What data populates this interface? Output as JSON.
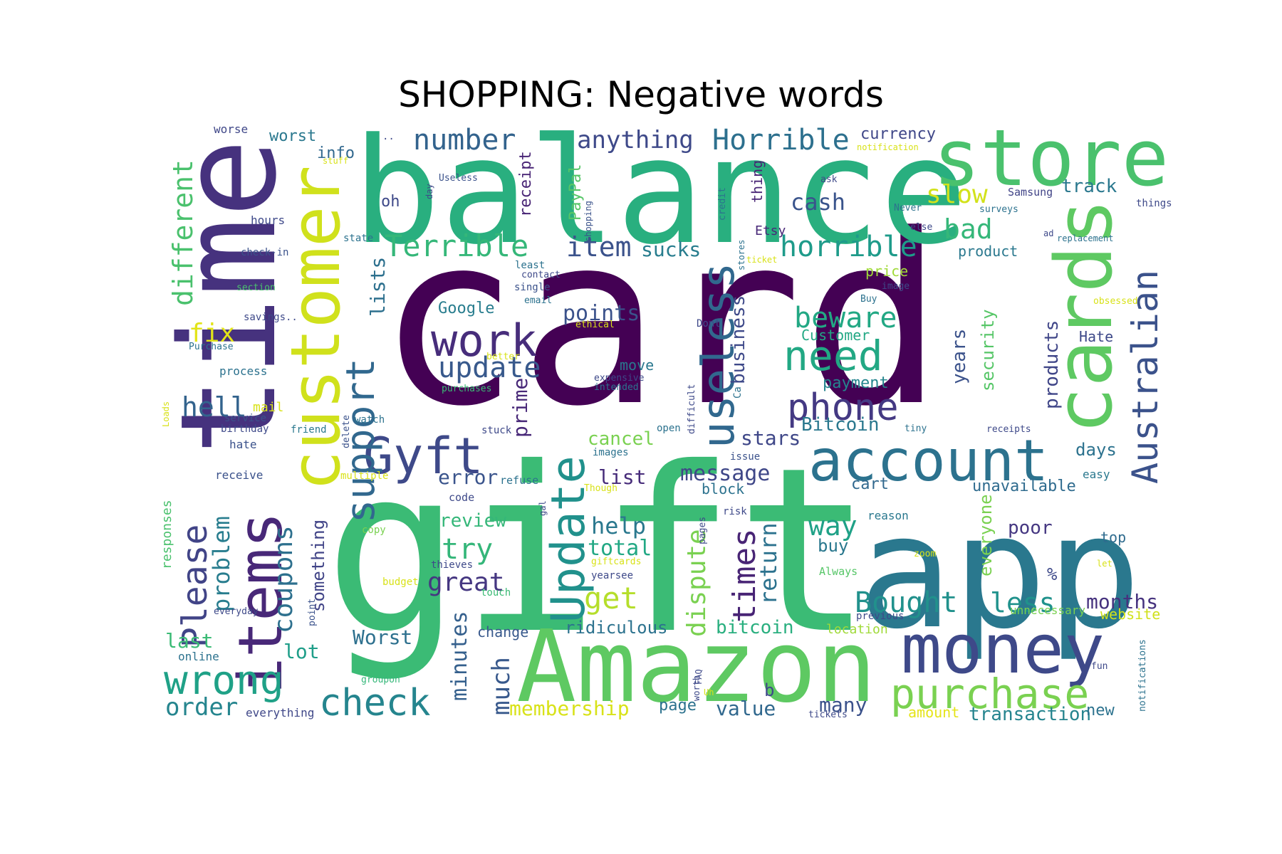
{
  "title": "SHOPPING: Negative words",
  "colormap": "viridis",
  "background": "#ffffff",
  "words": [
    {
      "text": "card",
      "weight": 1.0,
      "color": "#440154"
    },
    {
      "text": "gift",
      "weight": 0.95,
      "color": "#3bbb75"
    },
    {
      "text": "app",
      "weight": 0.7,
      "color": "#2a788e"
    },
    {
      "text": "balance",
      "weight": 0.72,
      "color": "#29af7f"
    },
    {
      "text": "time",
      "weight": 0.68,
      "color": "#46327e"
    },
    {
      "text": "Amazon",
      "weight": 0.55,
      "color": "#5ec962"
    },
    {
      "text": "store",
      "weight": 0.45,
      "color": "#4ac16d"
    },
    {
      "text": "customer",
      "weight": 0.42,
      "color": "#d0e11c"
    },
    {
      "text": "cards",
      "weight": 0.45,
      "color": "#5ec962"
    },
    {
      "text": "money",
      "weight": 0.4,
      "color": "#3e4989"
    },
    {
      "text": "items",
      "weight": 0.38,
      "color": "#482878"
    },
    {
      "text": "account",
      "weight": 0.36,
      "color": "#2c728e"
    },
    {
      "text": "Update",
      "weight": 0.32,
      "color": "#21918c"
    },
    {
      "text": "useless",
      "weight": 0.3,
      "color": "#31688e"
    },
    {
      "text": "purchase",
      "weight": 0.28,
      "color": "#7ad151"
    },
    {
      "text": "Gyft",
      "weight": 0.3,
      "color": "#3e4989"
    },
    {
      "text": "support",
      "weight": 0.26,
      "color": "#31688e"
    },
    {
      "text": "Australian",
      "weight": 0.25,
      "color": "#3b528b"
    },
    {
      "text": "work",
      "weight": 0.25,
      "color": "#472d7b"
    },
    {
      "text": "need",
      "weight": 0.25,
      "color": "#22a884"
    },
    {
      "text": "phone",
      "weight": 0.24,
      "color": "#443983"
    },
    {
      "text": "wrong",
      "weight": 0.24,
      "color": "#1fa187"
    },
    {
      "text": "check",
      "weight": 0.22,
      "color": "#25858e"
    },
    {
      "text": "Please",
      "weight": 0.22,
      "color": "#414487"
    },
    {
      "text": "times",
      "weight": 0.2,
      "color": "#482475"
    },
    {
      "text": "Terrible",
      "weight": 0.2,
      "color": "#35b779"
    },
    {
      "text": "Horrible",
      "weight": 0.18,
      "color": "#2d708e"
    },
    {
      "text": "horrible",
      "weight": 0.18,
      "color": "#1e9b8a"
    },
    {
      "text": "dispute",
      "weight": 0.18,
      "color": "#7ad151"
    },
    {
      "text": "different",
      "weight": 0.17,
      "color": "#4ac16d"
    },
    {
      "text": "coupons",
      "weight": 0.17,
      "color": "#2d708e"
    },
    {
      "text": "update",
      "weight": 0.17,
      "color": "#38598c"
    },
    {
      "text": "beware",
      "weight": 0.17,
      "color": "#22a884"
    },
    {
      "text": "Bought",
      "weight": 0.17,
      "color": "#21918c"
    },
    {
      "text": "number",
      "weight": 0.17,
      "color": "#33638d"
    },
    {
      "text": "slow",
      "weight": 0.17,
      "color": "#d2e21b"
    },
    {
      "text": "bad",
      "weight": 0.17,
      "color": "#35b779"
    },
    {
      "text": "item",
      "weight": 0.16,
      "color": "#3b528b"
    },
    {
      "text": "get",
      "weight": 0.16,
      "color": "#b5de2b"
    },
    {
      "text": "try",
      "weight": 0.16,
      "color": "#34b679"
    },
    {
      "text": "great",
      "weight": 0.16,
      "color": "#453781"
    },
    {
      "text": "hell",
      "weight": 0.16,
      "color": "#33638d"
    },
    {
      "text": "problem",
      "weight": 0.15,
      "color": "#287d8e"
    },
    {
      "text": "way",
      "weight": 0.15,
      "color": "#1fa187"
    },
    {
      "text": "return",
      "weight": 0.15,
      "color": "#2c728e"
    },
    {
      "text": "less",
      "weight": 0.15,
      "color": "#20928c"
    },
    {
      "text": "order",
      "weight": 0.14,
      "color": "#25858e"
    },
    {
      "text": "much",
      "weight": 0.14,
      "color": "#38598c"
    },
    {
      "text": "minutes",
      "weight": 0.13,
      "color": "#35608d"
    },
    {
      "text": "membership",
      "weight": 0.13,
      "color": "#d8e219"
    },
    {
      "text": "anything",
      "weight": 0.13,
      "color": "#3e4989"
    },
    {
      "text": "points",
      "weight": 0.13,
      "color": "#3b528b"
    },
    {
      "text": "fix",
      "weight": 0.13,
      "color": "#e2e418"
    },
    {
      "text": "cash",
      "weight": 0.13,
      "color": "#3a548c"
    },
    {
      "text": "message",
      "weight": 0.12,
      "color": "#3f4788"
    },
    {
      "text": "something",
      "weight": 0.12,
      "color": "#414487"
    },
    {
      "text": "months",
      "weight": 0.12,
      "color": "#46327e"
    },
    {
      "text": "help",
      "weight": 0.12,
      "color": "#2a788e"
    },
    {
      "text": "total",
      "weight": 0.12,
      "color": "#22a884"
    },
    {
      "text": "lists",
      "weight": 0.12,
      "color": "#2d708e"
    },
    {
      "text": "sucks",
      "weight": 0.12,
      "color": "#287d8e"
    },
    {
      "text": "prime",
      "weight": 0.12,
      "color": "#482878"
    },
    {
      "text": "business",
      "weight": 0.12,
      "color": "#3e4989"
    },
    {
      "text": "products",
      "weight": 0.12,
      "color": "#404688"
    },
    {
      "text": "security",
      "weight": 0.12,
      "color": "#56c667"
    },
    {
      "text": "years",
      "weight": 0.12,
      "color": "#3b528b"
    },
    {
      "text": "Worst",
      "weight": 0.12,
      "color": "#2d708e"
    },
    {
      "text": "error",
      "weight": 0.12,
      "color": "#3a548c"
    },
    {
      "text": "list",
      "weight": 0.12,
      "color": "#472c7a"
    },
    {
      "text": "review",
      "weight": 0.11,
      "color": "#35b779"
    },
    {
      "text": "cancel",
      "weight": 0.11,
      "color": "#7ad151"
    },
    {
      "text": "stars",
      "weight": 0.11,
      "color": "#3f4788"
    },
    {
      "text": "Bitcoin",
      "weight": 0.11,
      "color": "#2a788e"
    },
    {
      "text": "bitcoin",
      "weight": 0.11,
      "color": "#29af7f"
    },
    {
      "text": "ridiculous",
      "weight": 0.11,
      "color": "#2c728e"
    },
    {
      "text": "value",
      "weight": 0.11,
      "color": "#31688e"
    },
    {
      "text": "many",
      "weight": 0.11,
      "color": "#3b528b"
    },
    {
      "text": "transaction",
      "weight": 0.11,
      "color": "#25848e"
    },
    {
      "text": "lot",
      "weight": 0.11,
      "color": "#1f9e89"
    },
    {
      "text": "last",
      "weight": 0.11,
      "color": "#3bbb75"
    },
    {
      "text": "everyone",
      "weight": 0.11,
      "color": "#7ad151"
    },
    {
      "text": "days",
      "weight": 0.11,
      "color": "#2c728e"
    },
    {
      "text": "poor",
      "weight": 0.11,
      "color": "#453781"
    },
    {
      "text": "buy",
      "weight": 0.1,
      "color": "#2a788e"
    },
    {
      "text": "unavailable",
      "weight": 0.1,
      "color": "#2f6b8e"
    },
    {
      "text": "track",
      "weight": 0.1,
      "color": "#2a788e"
    },
    {
      "text": "PayPal",
      "weight": 0.1,
      "color": "#56c667"
    },
    {
      "text": "receipt",
      "weight": 0.1,
      "color": "#482475"
    },
    {
      "text": "Google",
      "weight": 0.1,
      "color": "#287d8e"
    },
    {
      "text": "payment",
      "weight": 0.1,
      "color": "#25858e"
    },
    {
      "text": "Customer",
      "weight": 0.09,
      "color": "#22a884"
    },
    {
      "text": "page",
      "weight": 0.09,
      "color": "#2c728e"
    },
    {
      "text": "change",
      "weight": 0.09,
      "color": "#38598c"
    },
    {
      "text": "move",
      "weight": 0.09,
      "color": "#2a788e"
    },
    {
      "text": "block",
      "weight": 0.09,
      "color": "#2c728e"
    },
    {
      "text": "cart",
      "weight": 0.09,
      "color": "#31688e"
    },
    {
      "text": "currency",
      "weight": 0.09,
      "color": "#3f4788"
    },
    {
      "text": "worst",
      "weight": 0.09,
      "color": "#2a788e"
    },
    {
      "text": "info",
      "weight": 0.09,
      "color": "#31688e"
    },
    {
      "text": "oh",
      "weight": 0.09,
      "color": "#3e4989"
    },
    {
      "text": "thing",
      "weight": 0.09,
      "color": "#482475"
    },
    {
      "text": "product",
      "weight": 0.09,
      "color": "#2a788e"
    },
    {
      "text": "price",
      "weight": 0.09,
      "color": "#a0da39"
    },
    {
      "text": "Hate",
      "weight": 0.09,
      "color": "#3e4989"
    },
    {
      "text": "website",
      "weight": 0.09,
      "color": "#d0e11c"
    },
    {
      "text": "amount",
      "weight": 0.09,
      "color": "#e5e419"
    },
    {
      "text": "new",
      "weight": 0.09,
      "color": "#2c728e"
    },
    {
      "text": "top",
      "weight": 0.08,
      "color": "#2f6b8e"
    },
    {
      "text": "location",
      "weight": 0.08,
      "color": "#a0da39"
    },
    {
      "text": "b",
      "weight": 0.08,
      "color": "#3e4989"
    },
    {
      "text": "Etsy",
      "weight": 0.08,
      "color": "#482878"
    },
    {
      "text": "responses",
      "weight": 0.08,
      "color": "#4ac16d"
    },
    {
      "text": "%",
      "weight": 0.08,
      "color": "#3e4989"
    },
    {
      "text": "easy",
      "weight": 0.07,
      "color": "#2a788e"
    },
    {
      "text": "reason",
      "weight": 0.07,
      "color": "#2a788e"
    },
    {
      "text": "hours",
      "weight": 0.07,
      "color": "#3e4989"
    },
    {
      "text": "receive",
      "weight": 0.07,
      "color": "#3b528b"
    },
    {
      "text": "everything",
      "weight": 0.07,
      "color": "#3f4788"
    },
    {
      "text": "mail",
      "weight": 0.07,
      "color": "#d8e219"
    },
    {
      "text": "process",
      "weight": 0.07,
      "color": "#2c728e"
    },
    {
      "text": "hate",
      "weight": 0.07,
      "color": "#3b528b"
    },
    {
      "text": "worse",
      "weight": 0.07,
      "color": "#3f4788"
    },
    {
      "text": "online",
      "weight": 0.07,
      "color": "#2c728e"
    },
    {
      "text": "Samsung",
      "weight": 0.06,
      "color": "#414487"
    },
    {
      "text": "things",
      "weight": 0.06,
      "color": "#3e4989"
    },
    {
      "text": "state",
      "weight": 0.06,
      "color": "#2c728e"
    },
    {
      "text": "check-in",
      "weight": 0.06,
      "color": "#3b528b"
    },
    {
      "text": "Always",
      "weight": 0.06,
      "color": "#56c667"
    },
    {
      "text": "code",
      "weight": 0.06,
      "color": "#3e4989"
    },
    {
      "text": "risk",
      "weight": 0.06,
      "color": "#3e4989"
    },
    {
      "text": "issue",
      "weight": 0.06,
      "color": "#3b528b"
    },
    {
      "text": "birthday",
      "weight": 0.06,
      "color": "#3e4989"
    },
    {
      "text": "friend",
      "weight": 0.06,
      "color": "#2a788e"
    },
    {
      "text": "service",
      "weight": 0.06,
      "color": "#3b528b"
    },
    {
      "text": "watch",
      "weight": 0.06,
      "color": "#2c728e"
    },
    {
      "text": "stuck",
      "weight": 0.06,
      "color": "#3e4989"
    },
    {
      "text": "delete",
      "weight": 0.06,
      "color": "#3b528b"
    },
    {
      "text": "images",
      "weight": 0.06,
      "color": "#2c728e"
    },
    {
      "text": "Dont",
      "weight": 0.06,
      "color": "#3e4989"
    },
    {
      "text": "multiple",
      "weight": 0.06,
      "color": "#d8e219"
    },
    {
      "text": "refuse",
      "weight": 0.06,
      "color": "#2c728e"
    },
    {
      "text": "open",
      "weight": 0.06,
      "color": "#2c728e"
    },
    {
      "text": "thieves",
      "weight": 0.06,
      "color": "#3e4989"
    },
    {
      "text": "touch",
      "weight": 0.06,
      "color": "#3bbb75"
    },
    {
      "text": "budget",
      "weight": 0.06,
      "color": "#d8e219"
    },
    {
      "text": "copy",
      "weight": 0.06,
      "color": "#7ad151"
    },
    {
      "text": "previous",
      "weight": 0.06,
      "color": "#3e4989"
    },
    {
      "text": "unnecessary",
      "weight": 0.06,
      "color": "#7ad151"
    },
    {
      "text": "groupon",
      "weight": 0.06,
      "color": "#35b779"
    },
    {
      "text": "everyday",
      "weight": 0.06,
      "color": "#3e4989"
    },
    {
      "text": "point",
      "weight": 0.06,
      "color": "#3b528b"
    },
    {
      "text": "savings..",
      "weight": 0.06,
      "color": "#3e4989"
    },
    {
      "text": "Purchase",
      "weight": 0.06,
      "color": "#2c728e"
    },
    {
      "text": "section",
      "weight": 0.06,
      "color": "#4ac16d"
    },
    {
      "text": "stuff",
      "weight": 0.05,
      "color": "#d8e219"
    },
    {
      "text": "Useless",
      "weight": 0.05,
      "color": "#3b528b"
    },
    {
      "text": "day",
      "weight": 0.05,
      "color": "#3e4989"
    },
    {
      "text": "shopping",
      "weight": 0.05,
      "color": "#3b528b"
    },
    {
      "text": "least",
      "weight": 0.06,
      "color": "#2c728e"
    },
    {
      "text": "contact",
      "weight": 0.06,
      "color": "#3e4989"
    },
    {
      "text": "single",
      "weight": 0.06,
      "color": "#3b528b"
    },
    {
      "text": "email",
      "weight": 0.06,
      "color": "#2c728e"
    },
    {
      "text": "ethical",
      "weight": 0.05,
      "color": "#d8e219"
    },
    {
      "text": "better",
      "weight": 0.05,
      "color": "#d8e219"
    },
    {
      "text": "purchases",
      "weight": 0.05,
      "color": "#3bbb75"
    },
    {
      "text": "expensive",
      "weight": 0.06,
      "color": "#3e4989"
    },
    {
      "text": "intended",
      "weight": 0.06,
      "color": "#2c728e"
    },
    {
      "text": "Though",
      "weight": 0.05,
      "color": "#d8e219"
    },
    {
      "text": "gal",
      "weight": 0.05,
      "color": "#3e4989"
    },
    {
      "text": "giftcards",
      "weight": 0.05,
      "color": "#d8e219"
    },
    {
      "text": "yearsee",
      "weight": 0.05,
      "color": "#3e4989"
    },
    {
      "text": "credit",
      "weight": 0.05,
      "color": "#2c728e"
    },
    {
      "text": "stores",
      "weight": 0.05,
      "color": "#2c728e"
    },
    {
      "text": "ticket",
      "weight": 0.05,
      "color": "#d8e219"
    },
    {
      "text": "image",
      "weight": 0.05,
      "color": "#3e4989"
    },
    {
      "text": "Buy",
      "weight": 0.05,
      "color": "#2c728e"
    },
    {
      "text": "obsessed",
      "weight": 0.05,
      "color": "#d8e219"
    },
    {
      "text": "ask",
      "weight": 0.05,
      "color": "#3e4989"
    },
    {
      "text": "Never",
      "weight": 0.05,
      "color": "#2c728e"
    },
    {
      "text": "else",
      "weight": 0.05,
      "color": "#3e4989"
    },
    {
      "text": "surveys",
      "weight": 0.05,
      "color": "#2c728e"
    },
    {
      "text": "ad",
      "weight": 0.05,
      "color": "#3e4989"
    },
    {
      "text": "replacement",
      "weight": 0.05,
      "color": "#2c728e"
    },
    {
      "text": "notification",
      "weight": 0.05,
      "color": "#d8e219"
    },
    {
      "text": "difficult",
      "weight": 0.05,
      "color": "#3e4989"
    },
    {
      "text": "Ca",
      "weight": 0.05,
      "color": "#2c728e"
    },
    {
      "text": "tiny",
      "weight": 0.05,
      "color": "#2c728e"
    },
    {
      "text": "receipts",
      "weight": 0.05,
      "color": "#3e4989"
    },
    {
      "text": "pages",
      "weight": 0.05,
      "color": "#3e4989"
    },
    {
      "text": "zoom",
      "weight": 0.05,
      "color": "#d8e219"
    },
    {
      "text": "let",
      "weight": 0.05,
      "color": "#d8e219"
    },
    {
      "text": "FAQ",
      "weight": 0.05,
      "color": "#3e4989"
    },
    {
      "text": "Uh",
      "weight": 0.05,
      "color": "#d8e219"
    },
    {
      "text": "worth",
      "weight": 0.05,
      "color": "#3e4989"
    },
    {
      "text": "tickets",
      "weight": 0.05,
      "color": "#3e4989"
    },
    {
      "text": "fun",
      "weight": 0.05,
      "color": "#3e4989"
    },
    {
      "text": "notifications",
      "weight": 0.05,
      "color": "#2c728e"
    },
    {
      "text": "Loads",
      "weight": 0.05,
      "color": "#d8e219"
    },
    {
      "text": "..",
      "weight": 0.05,
      "color": "#3e4989"
    }
  ]
}
